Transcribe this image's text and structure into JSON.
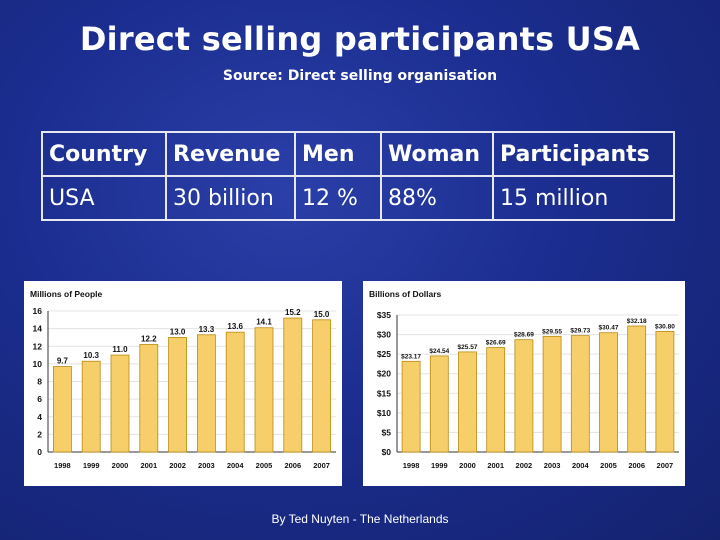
{
  "slide": {
    "title": "Direct selling participants USA",
    "subtitle": "Source: Direct selling organisation",
    "footer": "By Ted Nuyten - The Netherlands"
  },
  "table": {
    "headers": [
      "Country",
      "Revenue",
      "Men",
      "Woman",
      "Participants"
    ],
    "rows": [
      [
        "USA",
        "30 billion",
        "12 %",
        "88%",
        "15 million"
      ]
    ]
  },
  "colors": {
    "background": "#1b2d8f",
    "bar_fill": "#f6cf6a",
    "bar_edge": "#b98a10",
    "text": "#ffffff"
  },
  "chart_data": [
    {
      "type": "bar",
      "title": "Millions of People",
      "categories": [
        "1998",
        "1999",
        "2000",
        "2001",
        "2002",
        "2003",
        "2004",
        "2005",
        "2006",
        "2007"
      ],
      "values": [
        9.7,
        10.3,
        11.0,
        12.2,
        13.0,
        13.3,
        13.6,
        14.1,
        15.2,
        15.0
      ],
      "data_labels": [
        "9.7",
        "10.3",
        "11.0",
        "12.2",
        "13.0",
        "13.3",
        "13.6",
        "14.1",
        "15.2",
        "15.0"
      ],
      "y_ticks": [
        0,
        2,
        4,
        6,
        8,
        10,
        12,
        14,
        16
      ],
      "y_tick_labels": [
        "0",
        "2",
        "4",
        "6",
        "8",
        "10",
        "12",
        "14",
        "16"
      ],
      "ylim": [
        0,
        16
      ],
      "grid": true
    },
    {
      "type": "bar",
      "title": "Billions of Dollars",
      "categories": [
        "1998",
        "1999",
        "2000",
        "2001",
        "2002",
        "2003",
        "2004",
        "2005",
        "2006",
        "2007"
      ],
      "values": [
        23.17,
        24.54,
        25.57,
        26.69,
        28.69,
        29.55,
        29.73,
        30.47,
        32.18,
        30.8
      ],
      "data_labels": [
        "$23.17",
        "$24.54",
        "$25.57",
        "$26.69",
        "$28.69",
        "$29.55",
        "$29.73",
        "$30.47",
        "$32.18",
        "$30.80"
      ],
      "y_ticks": [
        0,
        5,
        10,
        15,
        20,
        25,
        30,
        35
      ],
      "y_tick_labels": [
        "$0",
        "$5",
        "$10",
        "$15",
        "$20",
        "$25",
        "$30",
        "$35"
      ],
      "ylim": [
        0,
        35
      ],
      "grid": true
    }
  ]
}
